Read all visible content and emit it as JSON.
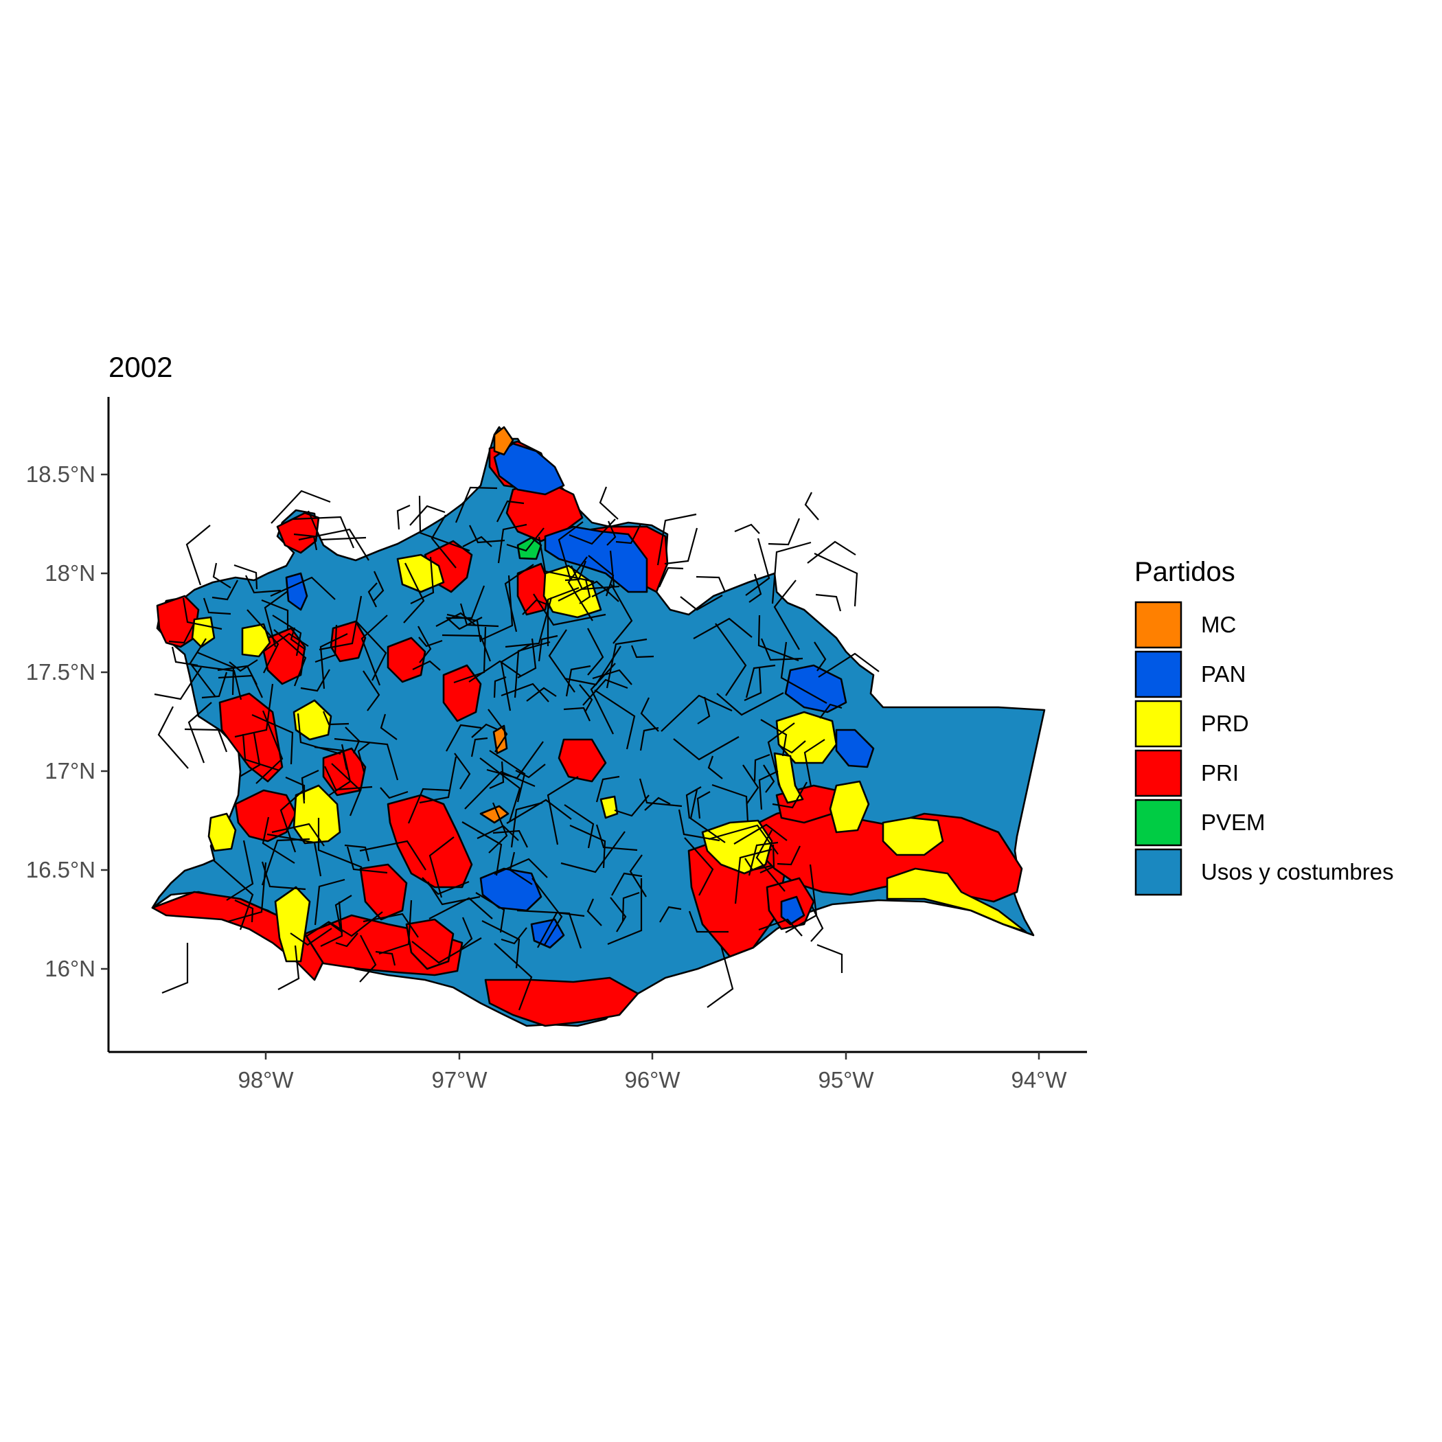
{
  "title": "2002",
  "axes": {
    "x_ticks": [
      "98°W",
      "97°W",
      "96°W",
      "95°W",
      "94°W"
    ],
    "y_ticks": [
      "18.5°N",
      "18°N",
      "17.5°N",
      "17°N",
      "16.5°N",
      "16°N"
    ]
  },
  "legend": {
    "title": "Partidos",
    "items": [
      {
        "label": "MC",
        "color": "#ff8000"
      },
      {
        "label": "PAN",
        "color": "#0059e6"
      },
      {
        "label": "PRD",
        "color": "#ffff00"
      },
      {
        "label": "PRI",
        "color": "#ff0000"
      },
      {
        "label": "PVEM",
        "color": "#00cc44"
      },
      {
        "label": "Usos y costumbres",
        "color": "#1a88c0"
      }
    ]
  },
  "chart_data": {
    "type": "choropleth map",
    "title": "2002",
    "x_axis": {
      "ticks": [
        "98°W",
        "97°W",
        "96°W",
        "95°W",
        "94°W"
      ],
      "range": [
        -98.8,
        -93.75
      ]
    },
    "y_axis": {
      "ticks": [
        "18.5°N",
        "18°N",
        "17.5°N",
        "17°N",
        "16.5°N",
        "16°N"
      ],
      "range": [
        15.6,
        18.88
      ]
    },
    "legend_title": "Partidos",
    "categories": [
      "MC",
      "PAN",
      "PRD",
      "PRI",
      "PVEM",
      "Usos y costumbres"
    ],
    "legend_position": "right",
    "grid": false
  }
}
